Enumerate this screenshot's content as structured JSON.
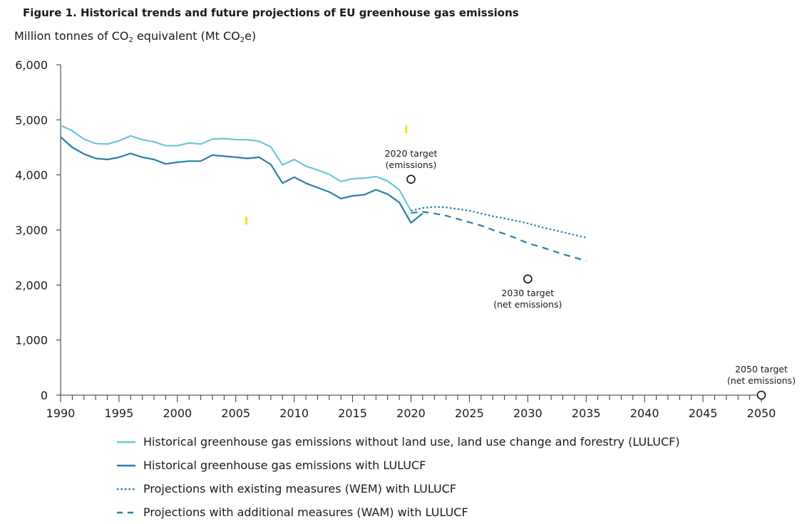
{
  "title_prefix": "Figure 1.",
  "title": "Historical trends and future projections of EU greenhouse gas emissions",
  "y_unit": {
    "part1": "Million tonnes of CO",
    "sub1": "2",
    "part2": " equivalent (Mt CO",
    "sub2": "2",
    "part3": "e)"
  },
  "chart_data": {
    "type": "line",
    "xlim": [
      1990,
      2050
    ],
    "ylim": [
      0,
      6000
    ],
    "x_ticks": [
      "1990",
      "1995",
      "2000",
      "2005",
      "2010",
      "2015",
      "2020",
      "2025",
      "2030",
      "2035",
      "2040",
      "2045",
      "2050"
    ],
    "y_ticks": [
      {
        "value": 0,
        "label": "0"
      },
      {
        "value": 1000,
        "label": "1,000"
      },
      {
        "value": 2000,
        "label": "2,000"
      },
      {
        "value": 3000,
        "label": "3,000"
      },
      {
        "value": 4000,
        "label": "4,000"
      },
      {
        "value": 5000,
        "label": "5,000"
      },
      {
        "value": 6000,
        "label": "6,000"
      }
    ],
    "series": [
      {
        "name": "Historical greenhouse gas emissions without land use, land use change and forestry (LULUCF)",
        "style": "solid",
        "color": "#6cc6d6",
        "x": [
          1990,
          1991,
          1992,
          1993,
          1994,
          1995,
          1996,
          1997,
          1998,
          1999,
          2000,
          2001,
          2002,
          2003,
          2004,
          2005,
          2006,
          2007,
          2008,
          2009,
          2010,
          2011,
          2012,
          2013,
          2014,
          2015,
          2016,
          2017,
          2018,
          2019,
          2020
        ],
        "y": [
          4900,
          4800,
          4650,
          4570,
          4560,
          4620,
          4710,
          4640,
          4600,
          4530,
          4530,
          4580,
          4560,
          4650,
          4660,
          4640,
          4640,
          4610,
          4510,
          4180,
          4280,
          4160,
          4090,
          4010,
          3880,
          3930,
          3940,
          3970,
          3890,
          3730,
          3350
        ]
      },
      {
        "name": "Historical greenhouse gas emissions with LULUCF",
        "style": "solid",
        "color": "#2a7fa6",
        "x": [
          1990,
          1991,
          1992,
          1993,
          1994,
          1995,
          1996,
          1997,
          1998,
          1999,
          2000,
          2001,
          2002,
          2003,
          2004,
          2005,
          2006,
          2007,
          2008,
          2009,
          2010,
          2011,
          2012,
          2013,
          2014,
          2015,
          2016,
          2017,
          2018,
          2019,
          2020,
          2021
        ],
        "y": [
          4690,
          4500,
          4380,
          4300,
          4280,
          4320,
          4390,
          4320,
          4280,
          4200,
          4230,
          4250,
          4250,
          4360,
          4340,
          4320,
          4300,
          4320,
          4190,
          3850,
          3960,
          3850,
          3770,
          3690,
          3570,
          3620,
          3640,
          3730,
          3650,
          3500,
          3130,
          3300
        ]
      },
      {
        "name": "Projections with existing measures (WEM) with LULUCF",
        "style": "dotted",
        "color": "#2a7fa6",
        "x": [
          2020,
          2021,
          2022,
          2023,
          2024,
          2025,
          2026,
          2027,
          2028,
          2029,
          2030,
          2031,
          2032,
          2033,
          2034,
          2035
        ],
        "y": [
          3350,
          3400,
          3420,
          3410,
          3380,
          3350,
          3300,
          3250,
          3210,
          3170,
          3120,
          3060,
          3010,
          2960,
          2910,
          2860
        ]
      },
      {
        "name": "Projections with additional measures (WAM) with LULUCF",
        "style": "dashed",
        "color": "#2a7fa6",
        "x": [
          2020,
          2021,
          2022,
          2023,
          2024,
          2025,
          2026,
          2027,
          2028,
          2029,
          2030,
          2031,
          2032,
          2033,
          2034,
          2035
        ],
        "y": [
          3310,
          3330,
          3300,
          3260,
          3200,
          3140,
          3080,
          3000,
          2930,
          2850,
          2760,
          2700,
          2630,
          2560,
          2500,
          2440
        ]
      }
    ],
    "targets": [
      {
        "x": 2020,
        "y": 3920,
        "label_line1": "2020 target",
        "label_line2": "(emissions)",
        "label_pos": "above"
      },
      {
        "x": 2030,
        "y": 2110,
        "label_line1": "2030 target",
        "label_line2": "(net emissions)",
        "label_pos": "below"
      },
      {
        "x": 2050,
        "y": 0,
        "label_line1": "2050 target",
        "label_line2": "(net emissions)",
        "label_pos": "above"
      }
    ],
    "yellow_marks": [
      {
        "x": 2019.6,
        "y": 4830
      },
      {
        "x": 2005.9,
        "y": 3170
      }
    ]
  },
  "legend": [
    {
      "label": "Historical greenhouse gas emissions without land use, land use change and forestry (LULUCF)",
      "style": "solid",
      "color": "#6cc6d6"
    },
    {
      "label": "Historical greenhouse gas emissions with LULUCF",
      "style": "solid",
      "color": "#2a7fa6"
    },
    {
      "label": "Projections with existing measures (WEM) with LULUCF",
      "style": "dotted",
      "color": "#2a7fa6"
    },
    {
      "label": "Projections with additional measures (WAM) with LULUCF",
      "style": "dashed",
      "color": "#2a7fa6"
    }
  ]
}
